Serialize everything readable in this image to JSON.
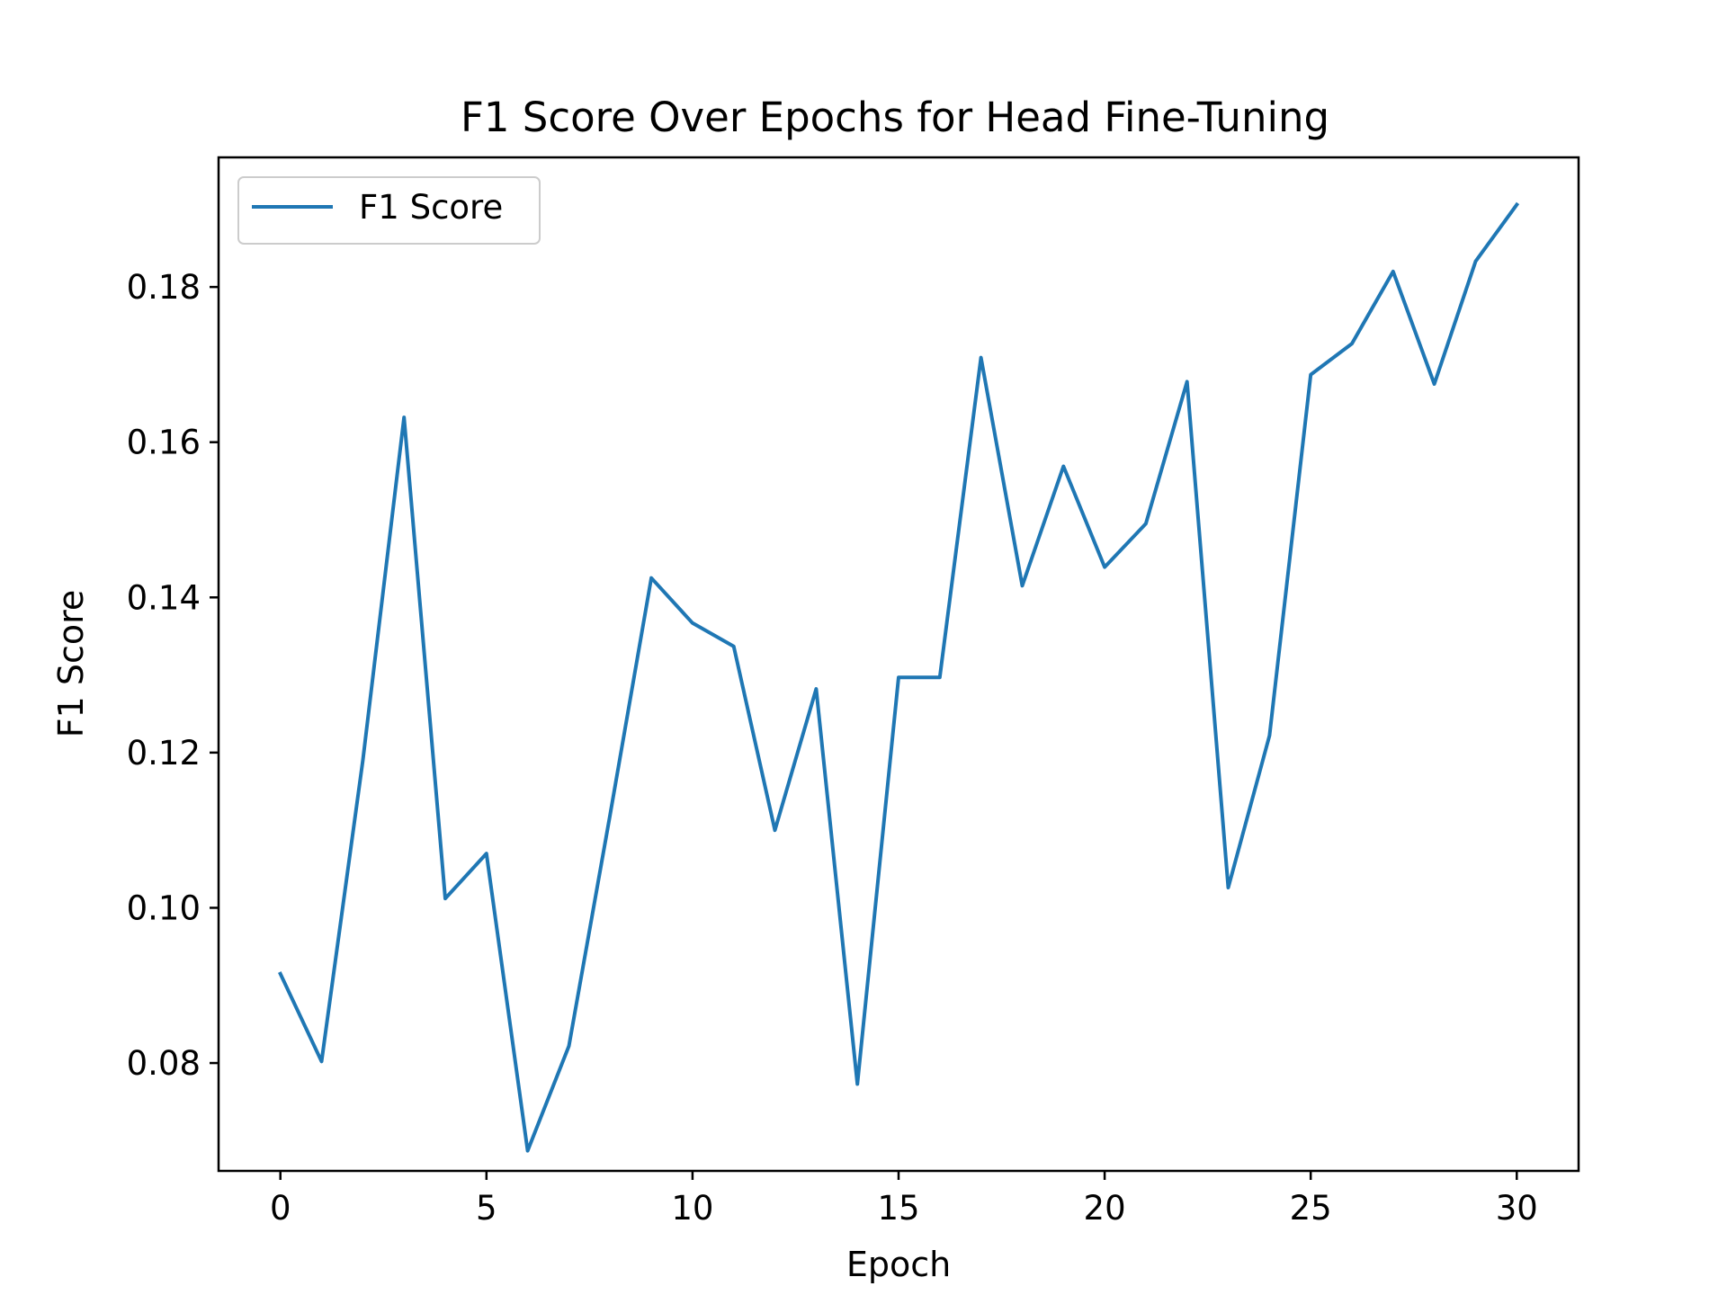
{
  "chart_data": {
    "type": "line",
    "title": "F1 Score Over Epochs for Head Fine-Tuning",
    "xlabel": "Epoch",
    "ylabel": "F1 Score",
    "xlim": [
      -1.5,
      31.5
    ],
    "ylim": [
      0.0661,
      0.1967
    ],
    "xticks": [
      0,
      5,
      10,
      15,
      20,
      25,
      30
    ],
    "xtick_labels": [
      "0",
      "5",
      "10",
      "15",
      "20",
      "25",
      "30"
    ],
    "yticks": [
      0.08,
      0.1,
      0.12,
      0.14,
      0.16,
      0.18
    ],
    "ytick_labels": [
      "0.08",
      "0.10",
      "0.12",
      "0.14",
      "0.16",
      "0.18"
    ],
    "grid": false,
    "legend_position": "top-left",
    "series": [
      {
        "name": "F1 Score",
        "color": "#1f77b4",
        "x": [
          0,
          1,
          2,
          3,
          4,
          5,
          6,
          7,
          8,
          9,
          10,
          11,
          12,
          13,
          14,
          15,
          16,
          17,
          18,
          19,
          20,
          21,
          22,
          23,
          24,
          25,
          26,
          27,
          28,
          29,
          30
        ],
        "values": [
          0.0915,
          0.0802,
          0.119,
          0.1632,
          0.1012,
          0.107,
          0.0687,
          0.0822,
          0.112,
          0.1425,
          0.1367,
          0.1337,
          0.11,
          0.1282,
          0.0773,
          0.1297,
          0.1297,
          0.1709,
          0.1415,
          0.1569,
          0.1439,
          0.1495,
          0.1678,
          0.1026,
          0.1222,
          0.1687,
          0.1727,
          0.182,
          0.1675,
          0.1833,
          0.1906
        ]
      }
    ]
  }
}
